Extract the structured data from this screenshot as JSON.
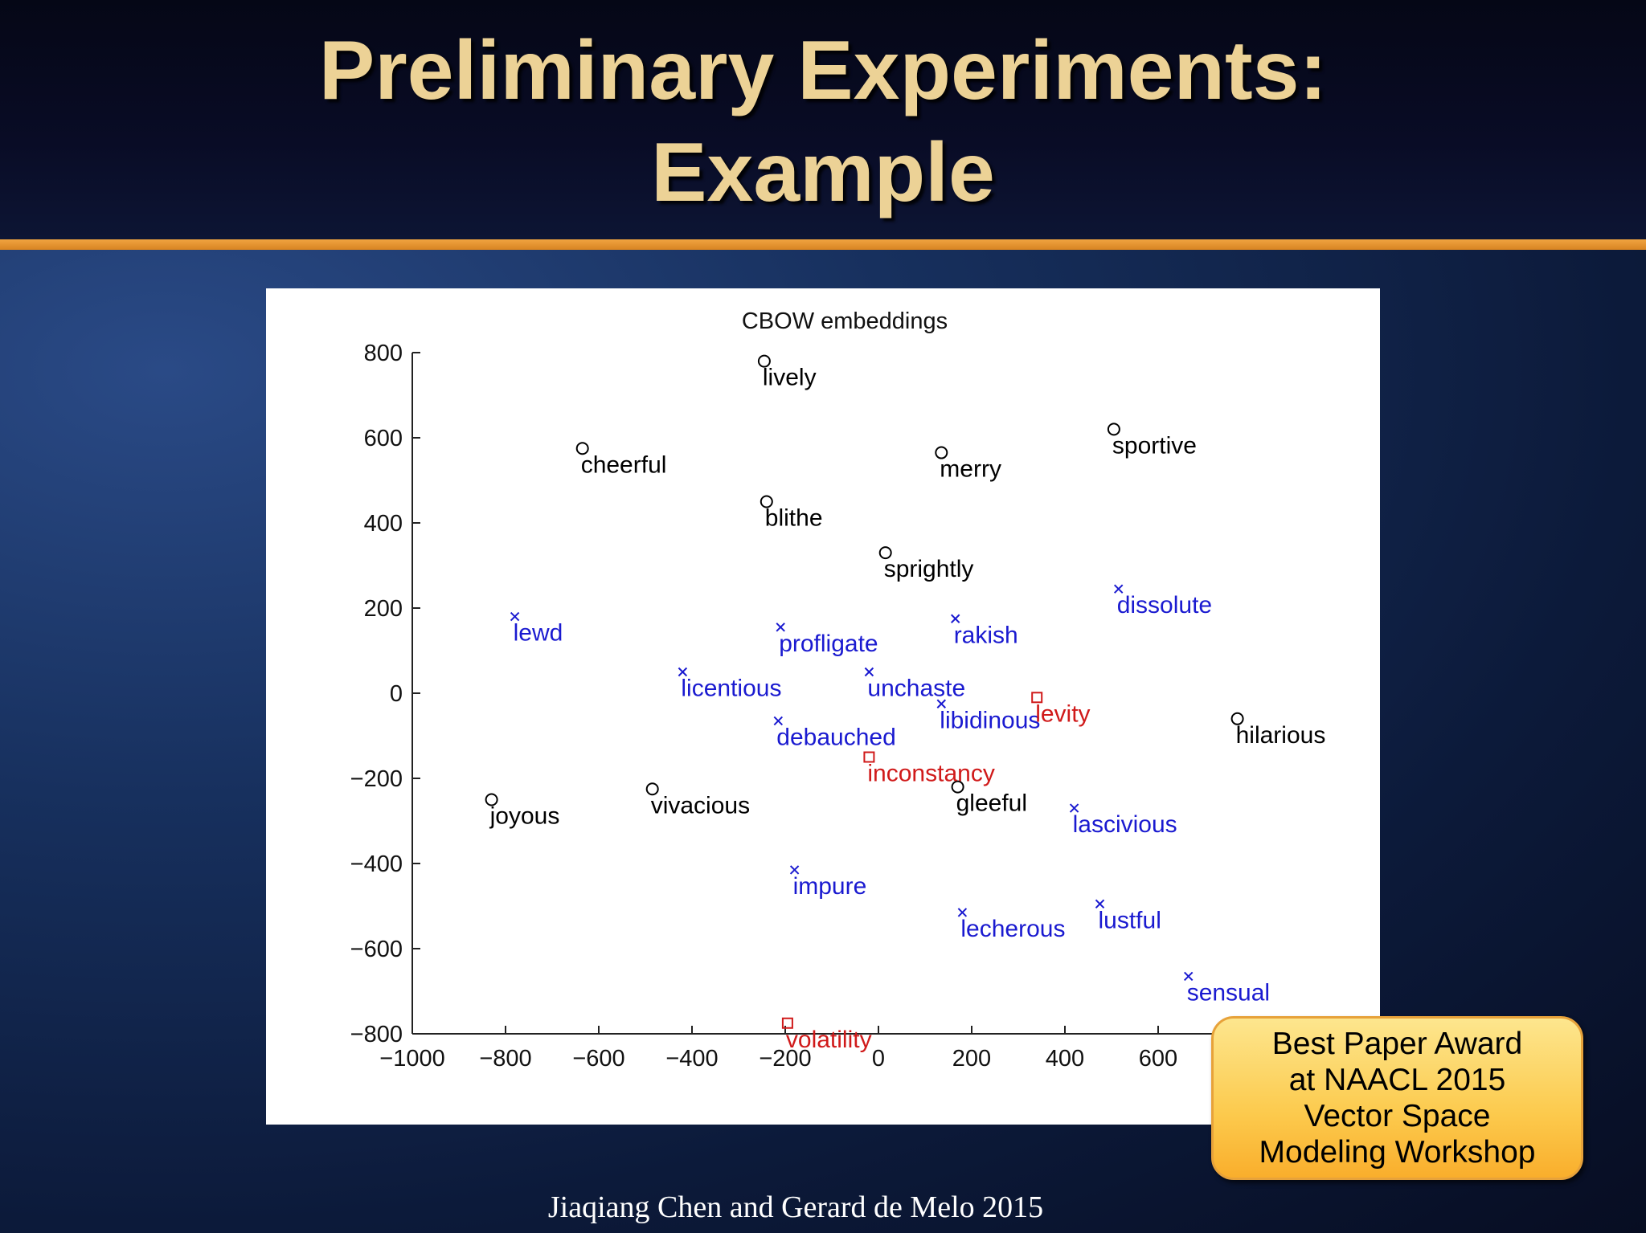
{
  "slide": {
    "title_line1": "Preliminary Experiments:",
    "title_line2": "Example",
    "footer": "Jiaqiang Chen and Gerard de Melo 2015",
    "award_lines": [
      "Best Paper Award",
      "at NAACL 2015",
      "Vector Space",
      "Modeling Workshop"
    ],
    "colors": {
      "title": "#ecd296",
      "accent_rule": "#e8962f",
      "award_box": "#fcc94c",
      "black_series": "#000000",
      "blue_series": "#1a1ad0",
      "red_series": "#d01a1a"
    }
  },
  "chart_data": {
    "type": "scatter",
    "title": "CBOW embeddings",
    "xlabel": "",
    "ylabel": "",
    "xlim": [
      -1000,
      1000
    ],
    "ylim": [
      -800,
      800
    ],
    "xticks": [
      -1000,
      -800,
      -600,
      -400,
      -200,
      0,
      200,
      400,
      600
    ],
    "xtick_labels": [
      "−1000",
      "−800",
      "−600",
      "−400",
      "−200",
      "0",
      "200",
      "400",
      "600"
    ],
    "yticks": [
      800,
      600,
      400,
      200,
      0,
      -200,
      -400,
      -600,
      -800
    ],
    "ytick_labels": [
      "800",
      "600",
      "400",
      "200",
      "0",
      "−200",
      "−400",
      "−600",
      "−800"
    ],
    "grid": false,
    "legend": "none",
    "series": [
      {
        "marker": "circle",
        "color": "#000000",
        "points": [
          {
            "label": "lively",
            "x": -245,
            "y": 780
          },
          {
            "label": "cheerful",
            "x": -635,
            "y": 575
          },
          {
            "label": "merry",
            "x": 135,
            "y": 565
          },
          {
            "label": "sportive",
            "x": 505,
            "y": 620
          },
          {
            "label": "blithe",
            "x": -240,
            "y": 450
          },
          {
            "label": "sprightly",
            "x": 15,
            "y": 330
          },
          {
            "label": "hilarious",
            "x": 770,
            "y": -60
          },
          {
            "label": "gleeful",
            "x": 170,
            "y": -220
          },
          {
            "label": "joyous",
            "x": -830,
            "y": -250
          },
          {
            "label": "vivacious",
            "x": -485,
            "y": -225
          }
        ]
      },
      {
        "marker": "cross",
        "color": "#1a1ad0",
        "points": [
          {
            "label": "lewd",
            "x": -780,
            "y": 180
          },
          {
            "label": "profligate",
            "x": -210,
            "y": 155
          },
          {
            "label": "rakish",
            "x": 165,
            "y": 175
          },
          {
            "label": "dissolute",
            "x": 515,
            "y": 245
          },
          {
            "label": "licentious",
            "x": -420,
            "y": 50
          },
          {
            "label": "unchaste",
            "x": -20,
            "y": 50
          },
          {
            "label": "libidinous",
            "x": 135,
            "y": -25
          },
          {
            "label": "debauched",
            "x": -215,
            "y": -65
          },
          {
            "label": "lascivious",
            "x": 420,
            "y": -270
          },
          {
            "label": "impure",
            "x": -180,
            "y": -415
          },
          {
            "label": "lecherous",
            "x": 180,
            "y": -515
          },
          {
            "label": "lustful",
            "x": 475,
            "y": -495
          },
          {
            "label": "sensual",
            "x": 665,
            "y": -665
          }
        ]
      },
      {
        "marker": "square",
        "color": "#d01a1a",
        "points": [
          {
            "label": "levity",
            "x": 340,
            "y": -10
          },
          {
            "label": "inconstancy",
            "x": -20,
            "y": -150
          },
          {
            "label": "volatility",
            "x": -195,
            "y": -775
          }
        ]
      }
    ]
  }
}
